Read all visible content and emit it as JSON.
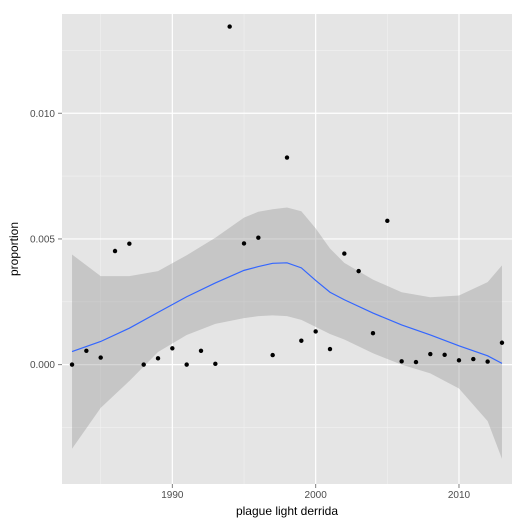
{
  "chart_data": {
    "type": "scatter",
    "xlabel": "plague light derrida",
    "ylabel": "proportion",
    "xlim": [
      1982.3,
      2013.7
    ],
    "ylim": [
      -0.00475,
      0.01395
    ],
    "x_ticks": [
      1990,
      2000,
      2010
    ],
    "x_tick_labels": [
      "1990",
      "2000",
      "2010"
    ],
    "y_ticks": [
      0.0,
      0.005,
      0.01
    ],
    "y_tick_labels": [
      "0.000",
      "0.005",
      "0.010"
    ],
    "grid": true,
    "legend": "none",
    "points": {
      "x": [
        1983,
        1984,
        1985,
        1986,
        1987,
        1988,
        1989,
        1990,
        1991,
        1992,
        1993,
        1994,
        1995,
        1996,
        1997,
        1998,
        1999,
        2000,
        2001,
        2002,
        2003,
        2004,
        2005,
        2006,
        2007,
        2008,
        2009,
        2010,
        2011,
        2012,
        2013
      ],
      "y": [
        0.0,
        0.00055,
        0.00028,
        0.00452,
        0.00481,
        0.0,
        0.00025,
        0.00065,
        0.0,
        0.00055,
        3e-05,
        0.01345,
        0.00482,
        0.00505,
        0.00038,
        0.00824,
        0.00095,
        0.00132,
        0.00062,
        0.00442,
        0.00372,
        0.00125,
        0.00572,
        0.00013,
        0.0001,
        0.00042,
        0.00039,
        0.00017,
        0.00022,
        0.00012,
        0.00087
      ]
    },
    "smooth": {
      "x": [
        1983,
        1985,
        1987,
        1989,
        1991,
        1993,
        1995,
        1996,
        1997,
        1998,
        1999,
        2000,
        2001,
        2002,
        2004,
        2006,
        2008,
        2010,
        2012,
        2013
      ],
      "y": [
        0.00052,
        0.00092,
        0.00145,
        0.00208,
        0.0027,
        0.00325,
        0.00375,
        0.0039,
        0.00403,
        0.00405,
        0.00385,
        0.00335,
        0.00288,
        0.00258,
        0.00205,
        0.00158,
        0.00118,
        0.00075,
        0.00035,
        5e-05
      ],
      "lower": [
        -0.00335,
        -0.00172,
        -0.00065,
        0.0005,
        0.00118,
        0.00162,
        0.00185,
        0.00193,
        0.00196,
        0.00193,
        0.00178,
        0.0015,
        0.00122,
        0.001,
        0.00045,
        0.0,
        -0.00035,
        -0.00095,
        -0.00225,
        -0.00375
      ],
      "upper": [
        0.00438,
        0.00352,
        0.00352,
        0.00372,
        0.00435,
        0.00505,
        0.00585,
        0.00608,
        0.00618,
        0.00625,
        0.0061,
        0.00542,
        0.00462,
        0.00405,
        0.00338,
        0.00288,
        0.00268,
        0.00275,
        0.00328,
        0.00395
      ]
    },
    "colors": {
      "panel": "#e5e5e5",
      "grid_major": "#ffffff",
      "grid_minor": "#f2f2f2",
      "ribbon": "#999999",
      "line": "#3366ff",
      "point": "#000000"
    }
  }
}
